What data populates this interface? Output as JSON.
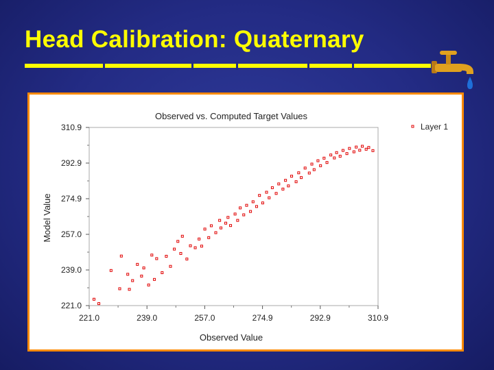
{
  "slide": {
    "title": "Head Calibration: Quaternary"
  },
  "icons": {
    "faucet": "faucet-icon"
  },
  "colors": {
    "background": "#232b84",
    "title": "#ffff00",
    "frame": "#ff8a00",
    "points": "#e00000",
    "water": "#1e6fd9"
  },
  "chart_data": {
    "type": "scatter",
    "title": "Observed vs. Computed Target Values",
    "xlabel": "Observed Value",
    "ylabel": "Model Value",
    "xlim": [
      221.0,
      310.9
    ],
    "ylim": [
      221.0,
      310.9
    ],
    "xticks": [
      "221.0",
      "239.0",
      "257.0",
      "274.9",
      "292.9",
      "310.9"
    ],
    "yticks": [
      "221.0",
      "239.0",
      "257.0",
      "274.9",
      "292.9",
      "310.9"
    ],
    "legend": {
      "position": "top-right",
      "entries": [
        "Layer 1"
      ]
    },
    "grid": false,
    "series": [
      {
        "name": "Layer 1",
        "points": [
          [
            222.5,
            224.2
          ],
          [
            224.0,
            222.0
          ],
          [
            227.8,
            238.7
          ],
          [
            231.0,
            246.0
          ],
          [
            230.5,
            229.5
          ],
          [
            233.5,
            229.2
          ],
          [
            233.0,
            236.8
          ],
          [
            234.5,
            233.6
          ],
          [
            236.0,
            241.8
          ],
          [
            237.3,
            235.9
          ],
          [
            238.0,
            240.0
          ],
          [
            239.5,
            231.4
          ],
          [
            240.5,
            246.5
          ],
          [
            242.0,
            244.7
          ],
          [
            241.3,
            234.2
          ],
          [
            243.7,
            237.6
          ],
          [
            245.0,
            245.9
          ],
          [
            246.3,
            240.8
          ],
          [
            247.5,
            249.5
          ],
          [
            248.6,
            253.4
          ],
          [
            249.5,
            247.3
          ],
          [
            250.0,
            256.0
          ],
          [
            251.4,
            244.5
          ],
          [
            252.5,
            251.2
          ],
          [
            254.0,
            250.2
          ],
          [
            255.2,
            254.6
          ],
          [
            256.0,
            251.0
          ],
          [
            257.0,
            259.6
          ],
          [
            258.2,
            255.3
          ],
          [
            259.0,
            261.3
          ],
          [
            260.4,
            257.8
          ],
          [
            261.6,
            264.0
          ],
          [
            262.0,
            260.2
          ],
          [
            263.5,
            262.6
          ],
          [
            264.2,
            265.5
          ],
          [
            265.0,
            261.4
          ],
          [
            266.4,
            267.2
          ],
          [
            267.2,
            264.0
          ],
          [
            268.0,
            270.3
          ],
          [
            269.1,
            266.8
          ],
          [
            270.0,
            271.6
          ],
          [
            271.2,
            268.5
          ],
          [
            272.0,
            273.4
          ],
          [
            273.1,
            271.0
          ],
          [
            274.0,
            276.6
          ],
          [
            275.0,
            272.8
          ],
          [
            276.2,
            278.2
          ],
          [
            277.0,
            275.4
          ],
          [
            278.0,
            280.5
          ],
          [
            279.2,
            277.6
          ],
          [
            280.0,
            282.4
          ],
          [
            281.3,
            279.8
          ],
          [
            282.1,
            284.2
          ],
          [
            283.0,
            281.4
          ],
          [
            284.0,
            286.3
          ],
          [
            285.4,
            283.5
          ],
          [
            286.2,
            288.0
          ],
          [
            287.0,
            285.6
          ],
          [
            288.2,
            290.4
          ],
          [
            289.5,
            287.9
          ],
          [
            290.3,
            292.4
          ],
          [
            291.0,
            289.6
          ],
          [
            292.2,
            294.1
          ],
          [
            293.0,
            291.6
          ],
          [
            294.1,
            295.4
          ],
          [
            295.0,
            293.2
          ],
          [
            296.2,
            297.0
          ],
          [
            297.3,
            295.5
          ],
          [
            298.0,
            298.2
          ],
          [
            299.1,
            296.4
          ],
          [
            300.0,
            299.3
          ],
          [
            301.2,
            297.7
          ],
          [
            302.0,
            300.3
          ],
          [
            303.4,
            298.6
          ],
          [
            304.1,
            301.0
          ],
          [
            305.2,
            299.4
          ],
          [
            306.0,
            301.4
          ],
          [
            307.2,
            299.9
          ],
          [
            308.0,
            300.8
          ],
          [
            309.3,
            299.2
          ]
        ]
      }
    ]
  }
}
